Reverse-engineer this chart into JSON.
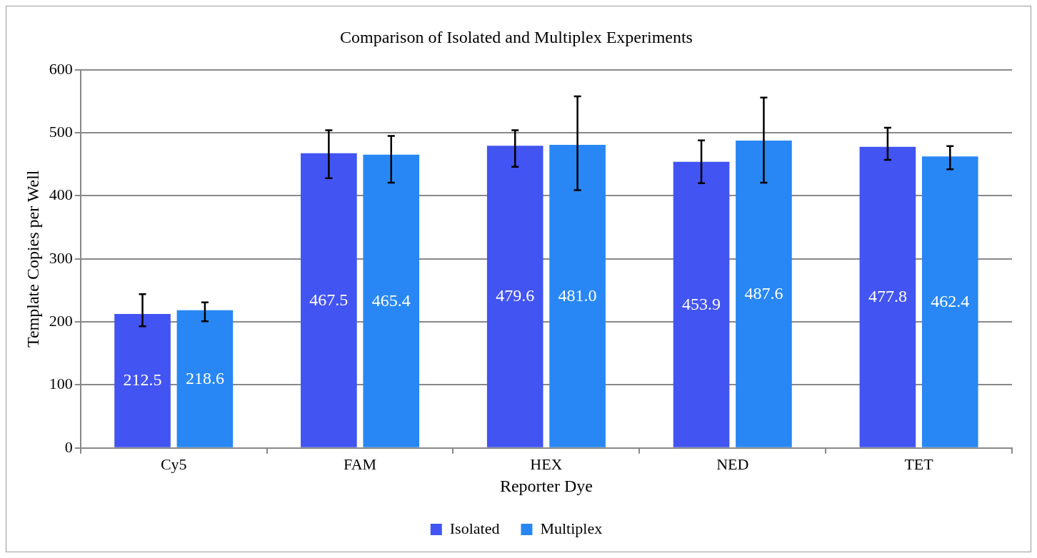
{
  "chart_data": {
    "type": "bar",
    "title": "Comparison of Isolated and Multiplex Experiments",
    "xlabel": "Reporter Dye",
    "ylabel": "Template Copies per Well",
    "categories": [
      "Cy5",
      "FAM",
      "HEX",
      "NED",
      "TET"
    ],
    "series": [
      {
        "name": "Isolated",
        "color": "#4254f2",
        "values": [
          212.5,
          467.5,
          479.6,
          453.9,
          477.8
        ],
        "value_labels": [
          "212.5",
          "467.5",
          "479.6",
          "453.9",
          "477.8"
        ],
        "errors": [
          [
            193,
            244
          ],
          [
            428,
            504
          ],
          [
            446,
            504
          ],
          [
            420,
            488
          ],
          [
            457,
            508
          ]
        ]
      },
      {
        "name": "Multiplex",
        "color": "#2887f4",
        "values": [
          218.6,
          465.4,
          481.0,
          487.6,
          462.4
        ],
        "value_labels": [
          "218.6",
          "465.4",
          "481.0",
          "487.6",
          "462.4"
        ],
        "errors": [
          [
            201,
            231
          ],
          [
            421,
            495
          ],
          [
            409,
            558
          ],
          [
            421,
            556
          ],
          [
            442,
            479
          ]
        ]
      }
    ],
    "ylim": [
      0,
      600
    ],
    "yticks": [
      0,
      100,
      200,
      300,
      400,
      500,
      600
    ],
    "grid": "y",
    "legend": "bottom"
  }
}
